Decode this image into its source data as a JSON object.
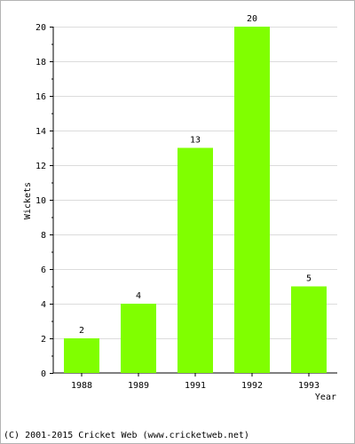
{
  "chart_data": {
    "type": "bar",
    "categories": [
      "1988",
      "1989",
      "1991",
      "1992",
      "1993"
    ],
    "values": [
      2,
      4,
      13,
      20,
      5
    ],
    "title": "",
    "xlabel": "Year",
    "ylabel": "Wickets",
    "ylim": [
      0,
      20
    ],
    "yticks": [
      0,
      2,
      4,
      6,
      8,
      10,
      12,
      14,
      16,
      18,
      20
    ],
    "grid": true,
    "data_labels": true,
    "bar_color": "#80ff00",
    "grid_color": "#dcdcdc"
  },
  "footer": {
    "copyright": "(C) 2001-2015 Cricket Web (www.cricketweb.net)"
  }
}
